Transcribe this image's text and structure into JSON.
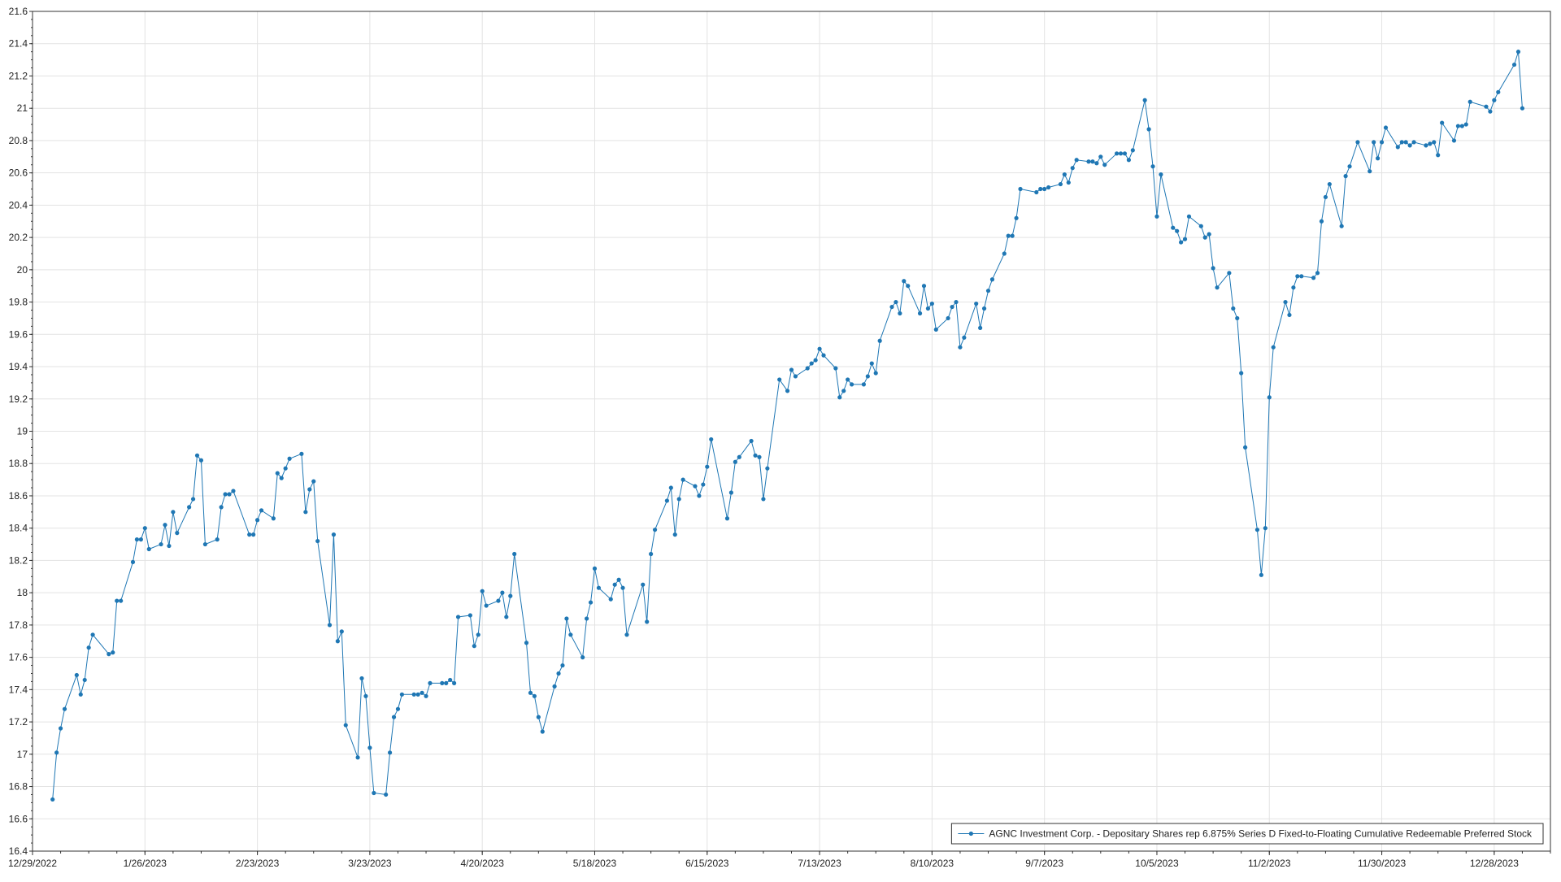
{
  "chart_data": {
    "type": "line",
    "title": "",
    "xlabel": "",
    "ylabel": "",
    "ylim": [
      16.4,
      21.6
    ],
    "xlim": [
      "2022-12-29",
      "2024-01-11"
    ],
    "grid": true,
    "legend_position": "bottom-right",
    "x_ticks": [
      "12/29/2022",
      "1/26/2023",
      "2/23/2023",
      "3/23/2023",
      "4/20/2023",
      "5/18/2023",
      "6/15/2023",
      "7/13/2023",
      "8/10/2023",
      "9/7/2023",
      "10/5/2023",
      "11/2/2023",
      "11/30/2023",
      "12/28/2023"
    ],
    "y_ticks": [
      16.4,
      16.6,
      16.8,
      17,
      17.2,
      17.4,
      17.6,
      17.8,
      18,
      18.2,
      18.4,
      18.6,
      18.8,
      19,
      19.2,
      19.4,
      19.6,
      19.8,
      20,
      20.2,
      20.4,
      20.6,
      20.8,
      21,
      21.2,
      21.4,
      21.6
    ],
    "series": [
      {
        "name": "AGNC Investment Corp. - Depositary Shares rep 6.875% Series D Fixed-to-Floating Cumulative Redeemable Preferred Stock",
        "color": "#1f77b4",
        "points": [
          [
            "2023-01-03",
            16.72
          ],
          [
            "2023-01-04",
            17.01
          ],
          [
            "2023-01-05",
            17.16
          ],
          [
            "2023-01-06",
            17.28
          ],
          [
            "2023-01-09",
            17.49
          ],
          [
            "2023-01-10",
            17.37
          ],
          [
            "2023-01-11",
            17.46
          ],
          [
            "2023-01-12",
            17.66
          ],
          [
            "2023-01-13",
            17.74
          ],
          [
            "2023-01-17",
            17.62
          ],
          [
            "2023-01-18",
            17.63
          ],
          [
            "2023-01-19",
            17.95
          ],
          [
            "2023-01-20",
            17.95
          ],
          [
            "2023-01-23",
            18.19
          ],
          [
            "2023-01-24",
            18.33
          ],
          [
            "2023-01-25",
            18.33
          ],
          [
            "2023-01-26",
            18.4
          ],
          [
            "2023-01-27",
            18.27
          ],
          [
            "2023-01-30",
            18.3
          ],
          [
            "2023-01-31",
            18.42
          ],
          [
            "2023-02-01",
            18.29
          ],
          [
            "2023-02-02",
            18.5
          ],
          [
            "2023-02-03",
            18.37
          ],
          [
            "2023-02-06",
            18.53
          ],
          [
            "2023-02-07",
            18.58
          ],
          [
            "2023-02-08",
            18.85
          ],
          [
            "2023-02-09",
            18.82
          ],
          [
            "2023-02-10",
            18.3
          ],
          [
            "2023-02-13",
            18.33
          ],
          [
            "2023-02-14",
            18.53
          ],
          [
            "2023-02-15",
            18.61
          ],
          [
            "2023-02-16",
            18.61
          ],
          [
            "2023-02-17",
            18.63
          ],
          [
            "2023-02-21",
            18.36
          ],
          [
            "2023-02-22",
            18.36
          ],
          [
            "2023-02-23",
            18.45
          ],
          [
            "2023-02-24",
            18.51
          ],
          [
            "2023-02-27",
            18.46
          ],
          [
            "2023-02-28",
            18.74
          ],
          [
            "2023-03-01",
            18.71
          ],
          [
            "2023-03-02",
            18.77
          ],
          [
            "2023-03-03",
            18.83
          ],
          [
            "2023-03-06",
            18.86
          ],
          [
            "2023-03-07",
            18.5
          ],
          [
            "2023-03-08",
            18.64
          ],
          [
            "2023-03-09",
            18.69
          ],
          [
            "2023-03-10",
            18.32
          ],
          [
            "2023-03-13",
            17.8
          ],
          [
            "2023-03-14",
            18.36
          ],
          [
            "2023-03-15",
            17.7
          ],
          [
            "2023-03-16",
            17.76
          ],
          [
            "2023-03-17",
            17.18
          ],
          [
            "2023-03-20",
            16.98
          ],
          [
            "2023-03-21",
            17.47
          ],
          [
            "2023-03-22",
            17.36
          ],
          [
            "2023-03-23",
            17.04
          ],
          [
            "2023-03-24",
            16.76
          ],
          [
            "2023-03-27",
            16.75
          ],
          [
            "2023-03-28",
            17.01
          ],
          [
            "2023-03-29",
            17.23
          ],
          [
            "2023-03-30",
            17.28
          ],
          [
            "2023-03-31",
            17.37
          ],
          [
            "2023-04-03",
            17.37
          ],
          [
            "2023-04-04",
            17.37
          ],
          [
            "2023-04-05",
            17.38
          ],
          [
            "2023-04-06",
            17.36
          ],
          [
            "2023-04-07",
            17.44
          ],
          [
            "2023-04-10",
            17.44
          ],
          [
            "2023-04-11",
            17.44
          ],
          [
            "2023-04-12",
            17.46
          ],
          [
            "2023-04-13",
            17.44
          ],
          [
            "2023-04-14",
            17.85
          ],
          [
            "2023-04-17",
            17.86
          ],
          [
            "2023-04-18",
            17.67
          ],
          [
            "2023-04-19",
            17.74
          ],
          [
            "2023-04-20",
            18.01
          ],
          [
            "2023-04-21",
            17.92
          ],
          [
            "2023-04-24",
            17.95
          ],
          [
            "2023-04-25",
            18.0
          ],
          [
            "2023-04-26",
            17.85
          ],
          [
            "2023-04-27",
            17.98
          ],
          [
            "2023-04-28",
            18.24
          ],
          [
            "2023-05-01",
            17.69
          ],
          [
            "2023-05-02",
            17.38
          ],
          [
            "2023-05-03",
            17.36
          ],
          [
            "2023-05-04",
            17.23
          ],
          [
            "2023-05-05",
            17.14
          ],
          [
            "2023-05-08",
            17.42
          ],
          [
            "2023-05-09",
            17.5
          ],
          [
            "2023-05-10",
            17.55
          ],
          [
            "2023-05-11",
            17.84
          ],
          [
            "2023-05-12",
            17.74
          ],
          [
            "2023-05-15",
            17.6
          ],
          [
            "2023-05-16",
            17.84
          ],
          [
            "2023-05-17",
            17.94
          ],
          [
            "2023-05-18",
            18.15
          ],
          [
            "2023-05-19",
            18.03
          ],
          [
            "2023-05-22",
            17.96
          ],
          [
            "2023-05-23",
            18.05
          ],
          [
            "2023-05-24",
            18.08
          ],
          [
            "2023-05-25",
            18.03
          ],
          [
            "2023-05-26",
            17.74
          ],
          [
            "2023-05-30",
            18.05
          ],
          [
            "2023-05-31",
            17.82
          ],
          [
            "2023-06-01",
            18.24
          ],
          [
            "2023-06-02",
            18.39
          ],
          [
            "2023-06-05",
            18.57
          ],
          [
            "2023-06-06",
            18.65
          ],
          [
            "2023-06-07",
            18.36
          ],
          [
            "2023-06-08",
            18.58
          ],
          [
            "2023-06-09",
            18.7
          ],
          [
            "2023-06-12",
            18.66
          ],
          [
            "2023-06-13",
            18.6
          ],
          [
            "2023-06-14",
            18.67
          ],
          [
            "2023-06-15",
            18.78
          ],
          [
            "2023-06-16",
            18.95
          ],
          [
            "2023-06-20",
            18.46
          ],
          [
            "2023-06-21",
            18.62
          ],
          [
            "2023-06-22",
            18.81
          ],
          [
            "2023-06-23",
            18.84
          ],
          [
            "2023-06-26",
            18.94
          ],
          [
            "2023-06-27",
            18.85
          ],
          [
            "2023-06-28",
            18.84
          ],
          [
            "2023-06-29",
            18.58
          ],
          [
            "2023-06-30",
            18.77
          ],
          [
            "2023-07-03",
            19.32
          ],
          [
            "2023-07-05",
            19.25
          ],
          [
            "2023-07-06",
            19.38
          ],
          [
            "2023-07-07",
            19.34
          ],
          [
            "2023-07-10",
            19.39
          ],
          [
            "2023-07-11",
            19.42
          ],
          [
            "2023-07-12",
            19.44
          ],
          [
            "2023-07-13",
            19.51
          ],
          [
            "2023-07-14",
            19.47
          ],
          [
            "2023-07-17",
            19.39
          ],
          [
            "2023-07-18",
            19.21
          ],
          [
            "2023-07-19",
            19.25
          ],
          [
            "2023-07-20",
            19.32
          ],
          [
            "2023-07-21",
            19.29
          ],
          [
            "2023-07-24",
            19.29
          ],
          [
            "2023-07-25",
            19.34
          ],
          [
            "2023-07-26",
            19.42
          ],
          [
            "2023-07-27",
            19.36
          ],
          [
            "2023-07-28",
            19.56
          ],
          [
            "2023-07-31",
            19.77
          ],
          [
            "2023-08-01",
            19.8
          ],
          [
            "2023-08-02",
            19.73
          ],
          [
            "2023-08-03",
            19.93
          ],
          [
            "2023-08-04",
            19.9
          ],
          [
            "2023-08-07",
            19.73
          ],
          [
            "2023-08-08",
            19.9
          ],
          [
            "2023-08-09",
            19.76
          ],
          [
            "2023-08-10",
            19.79
          ],
          [
            "2023-08-11",
            19.63
          ],
          [
            "2023-08-14",
            19.7
          ],
          [
            "2023-08-15",
            19.77
          ],
          [
            "2023-08-16",
            19.8
          ],
          [
            "2023-08-17",
            19.52
          ],
          [
            "2023-08-18",
            19.58
          ],
          [
            "2023-08-21",
            19.79
          ],
          [
            "2023-08-22",
            19.64
          ],
          [
            "2023-08-23",
            19.76
          ],
          [
            "2023-08-24",
            19.87
          ],
          [
            "2023-08-25",
            19.94
          ],
          [
            "2023-08-28",
            20.1
          ],
          [
            "2023-08-29",
            20.21
          ],
          [
            "2023-08-30",
            20.21
          ],
          [
            "2023-08-31",
            20.32
          ],
          [
            "2023-09-01",
            20.5
          ],
          [
            "2023-09-05",
            20.48
          ],
          [
            "2023-09-06",
            20.5
          ],
          [
            "2023-09-07",
            20.5
          ],
          [
            "2023-09-08",
            20.51
          ],
          [
            "2023-09-11",
            20.53
          ],
          [
            "2023-09-12",
            20.59
          ],
          [
            "2023-09-13",
            20.54
          ],
          [
            "2023-09-14",
            20.63
          ],
          [
            "2023-09-15",
            20.68
          ],
          [
            "2023-09-18",
            20.67
          ],
          [
            "2023-09-19",
            20.67
          ],
          [
            "2023-09-20",
            20.66
          ],
          [
            "2023-09-21",
            20.7
          ],
          [
            "2023-09-22",
            20.65
          ],
          [
            "2023-09-25",
            20.72
          ],
          [
            "2023-09-26",
            20.72
          ],
          [
            "2023-09-27",
            20.72
          ],
          [
            "2023-09-28",
            20.68
          ],
          [
            "2023-09-29",
            20.74
          ],
          [
            "2023-10-02",
            21.05
          ],
          [
            "2023-10-03",
            20.87
          ],
          [
            "2023-10-04",
            20.64
          ],
          [
            "2023-10-05",
            20.33
          ],
          [
            "2023-10-06",
            20.59
          ],
          [
            "2023-10-09",
            20.26
          ],
          [
            "2023-10-10",
            20.24
          ],
          [
            "2023-10-11",
            20.17
          ],
          [
            "2023-10-12",
            20.19
          ],
          [
            "2023-10-13",
            20.33
          ],
          [
            "2023-10-16",
            20.27
          ],
          [
            "2023-10-17",
            20.2
          ],
          [
            "2023-10-18",
            20.22
          ],
          [
            "2023-10-19",
            20.01
          ],
          [
            "2023-10-20",
            19.89
          ],
          [
            "2023-10-23",
            19.98
          ],
          [
            "2023-10-24",
            19.76
          ],
          [
            "2023-10-25",
            19.7
          ],
          [
            "2023-10-26",
            19.36
          ],
          [
            "2023-10-27",
            18.9
          ],
          [
            "2023-10-30",
            18.39
          ],
          [
            "2023-10-31",
            18.11
          ],
          [
            "2023-11-01",
            18.4
          ],
          [
            "2023-11-02",
            19.21
          ],
          [
            "2023-11-03",
            19.52
          ],
          [
            "2023-11-06",
            19.8
          ],
          [
            "2023-11-07",
            19.72
          ],
          [
            "2023-11-08",
            19.89
          ],
          [
            "2023-11-09",
            19.96
          ],
          [
            "2023-11-10",
            19.96
          ],
          [
            "2023-11-13",
            19.95
          ],
          [
            "2023-11-14",
            19.98
          ],
          [
            "2023-11-15",
            20.3
          ],
          [
            "2023-11-16",
            20.45
          ],
          [
            "2023-11-17",
            20.53
          ],
          [
            "2023-11-20",
            20.27
          ],
          [
            "2023-11-21",
            20.58
          ],
          [
            "2023-11-22",
            20.64
          ],
          [
            "2023-11-24",
            20.79
          ],
          [
            "2023-11-27",
            20.61
          ],
          [
            "2023-11-28",
            20.79
          ],
          [
            "2023-11-29",
            20.69
          ],
          [
            "2023-11-30",
            20.79
          ],
          [
            "2023-12-01",
            20.88
          ],
          [
            "2023-12-04",
            20.76
          ],
          [
            "2023-12-05",
            20.79
          ],
          [
            "2023-12-06",
            20.79
          ],
          [
            "2023-12-07",
            20.77
          ],
          [
            "2023-12-08",
            20.79
          ],
          [
            "2023-12-11",
            20.77
          ],
          [
            "2023-12-12",
            20.78
          ],
          [
            "2023-12-13",
            20.79
          ],
          [
            "2023-12-14",
            20.71
          ],
          [
            "2023-12-15",
            20.91
          ],
          [
            "2023-12-18",
            20.8
          ],
          [
            "2023-12-19",
            20.89
          ],
          [
            "2023-12-20",
            20.89
          ],
          [
            "2023-12-21",
            20.9
          ],
          [
            "2023-12-22",
            21.04
          ],
          [
            "2023-12-26",
            21.01
          ],
          [
            "2023-12-27",
            20.98
          ],
          [
            "2023-12-28",
            21.05
          ],
          [
            "2023-12-29",
            21.1
          ],
          [
            "2024-01-02",
            21.27
          ],
          [
            "2024-01-03",
            21.35
          ],
          [
            "2024-01-04",
            21.0
          ]
        ]
      }
    ]
  }
}
